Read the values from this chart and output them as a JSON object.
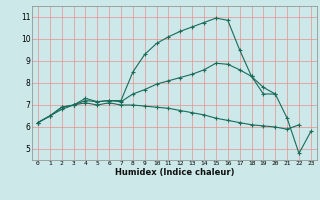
{
  "xlabel": "Humidex (Indice chaleur)",
  "background_color": "#cce8e8",
  "grid_color": "#e89090",
  "line_color": "#1a6b5a",
  "xlim": [
    -0.5,
    23.5
  ],
  "ylim": [
    4.5,
    11.5
  ],
  "xticks": [
    0,
    1,
    2,
    3,
    4,
    5,
    6,
    7,
    8,
    9,
    10,
    11,
    12,
    13,
    14,
    15,
    16,
    17,
    18,
    19,
    20,
    21,
    22,
    23
  ],
  "yticks": [
    5,
    6,
    7,
    8,
    9,
    10,
    11
  ],
  "line1_x": [
    0,
    1,
    2,
    3,
    4,
    5,
    6,
    7,
    8,
    9,
    10,
    11,
    12,
    13,
    14,
    15,
    16,
    17,
    18,
    19,
    20,
    21,
    22
  ],
  "line1_y": [
    6.2,
    6.5,
    6.8,
    7.0,
    7.1,
    7.0,
    7.1,
    7.0,
    7.0,
    6.95,
    6.9,
    6.85,
    6.75,
    6.65,
    6.55,
    6.4,
    6.3,
    6.2,
    6.1,
    6.05,
    6.0,
    5.9,
    6.1
  ],
  "line2_x": [
    0,
    1,
    2,
    3,
    4,
    5,
    6,
    7,
    8,
    9,
    10,
    11,
    12,
    13,
    14,
    15,
    16,
    17,
    18,
    19,
    20
  ],
  "line2_y": [
    6.2,
    6.5,
    6.9,
    7.0,
    7.2,
    7.15,
    7.2,
    7.2,
    8.5,
    9.3,
    9.8,
    10.1,
    10.35,
    10.55,
    10.75,
    10.95,
    10.85,
    9.5,
    8.3,
    7.5,
    7.5
  ],
  "line3_x": [
    0,
    1,
    2,
    3,
    4,
    5,
    6,
    7,
    8,
    9,
    10,
    11,
    12,
    13,
    14,
    15,
    16,
    17,
    18,
    19,
    20,
    21,
    22,
    23
  ],
  "line3_y": [
    6.2,
    6.5,
    6.9,
    7.0,
    7.3,
    7.15,
    7.2,
    7.15,
    7.5,
    7.7,
    7.95,
    8.1,
    8.25,
    8.4,
    8.6,
    8.9,
    8.85,
    8.6,
    8.3,
    7.8,
    7.5,
    6.4,
    4.8,
    5.8
  ]
}
